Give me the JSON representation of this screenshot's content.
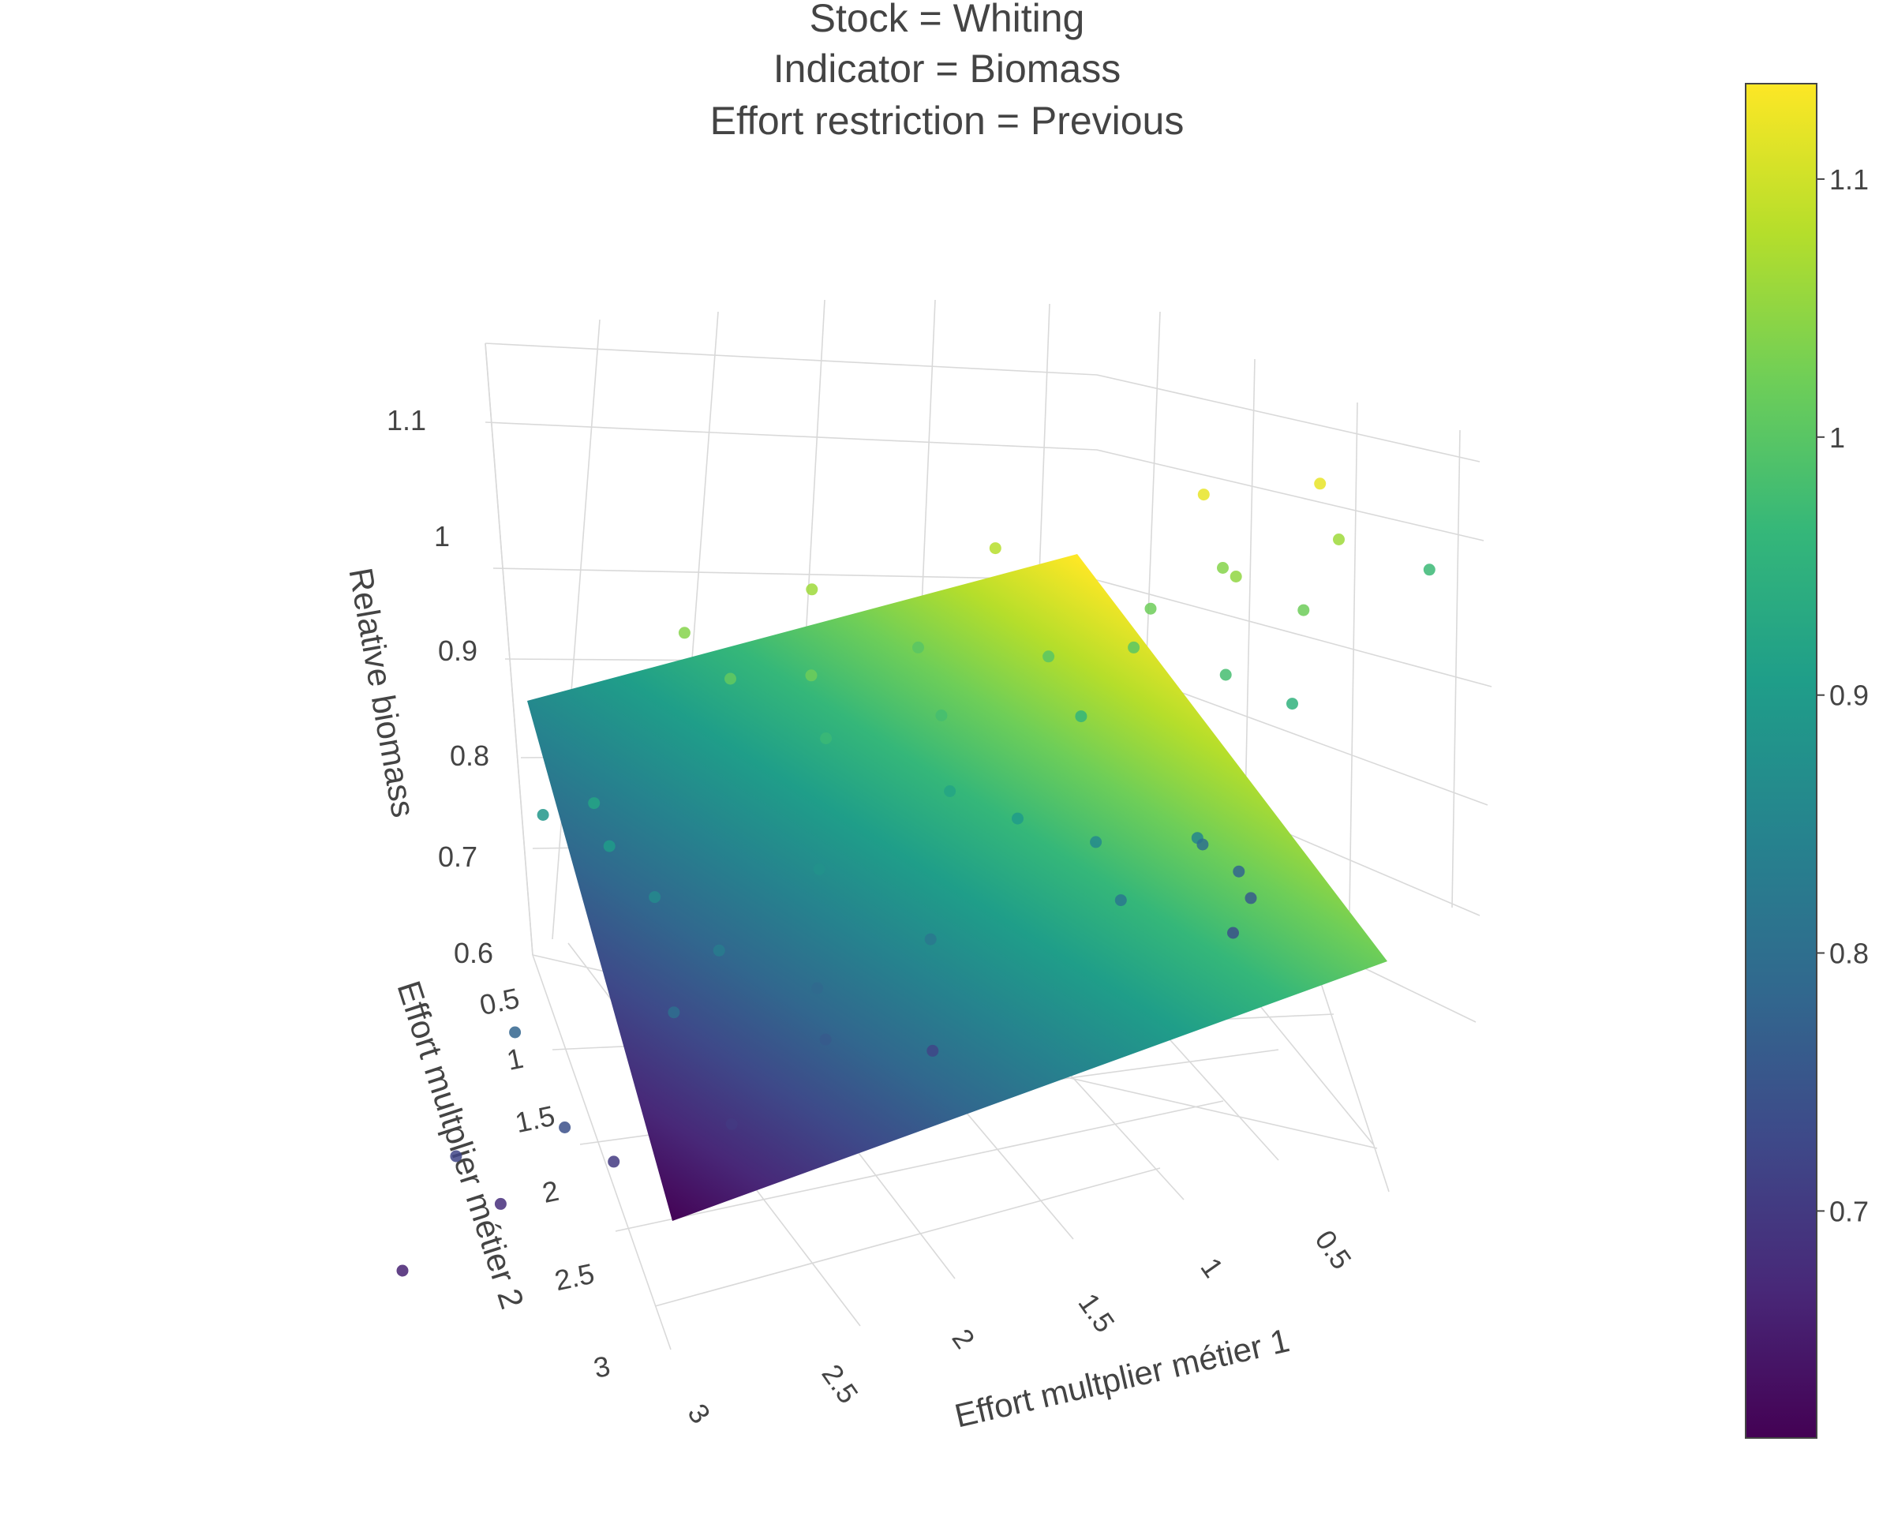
{
  "title_lines": [
    "Stock = Whiting",
    "Indicator = Biomass",
    "Effort restriction = Previous"
  ],
  "chart_data": {
    "type": "surface3d",
    "title": "Stock = Whiting | Indicator = Biomass | Effort restriction = Previous",
    "xlabel": "Effort multplier métier 1",
    "ylabel": "Effort multplier métier 2",
    "zlabel": "Relative biomass",
    "x_ticks": [
      "0.5",
      "1",
      "1.5",
      "2",
      "2.5",
      "3"
    ],
    "y_ticks": [
      "0.5",
      "1",
      "1.5",
      "2",
      "2.5",
      "3"
    ],
    "z_ticks": [
      "0.6",
      "0.7",
      "0.8",
      "0.9",
      "1",
      "1.1"
    ],
    "xlim": [
      0.3,
      3.1
    ],
    "ylim": [
      0.3,
      3.1
    ],
    "zlim": [
      0.6,
      1.15
    ],
    "colorscale": "Viridis",
    "colorbar": {
      "ticks": [
        "0.7",
        "0.8",
        "0.9",
        "1",
        "1.1"
      ],
      "range": [
        0.612,
        1.137
      ]
    },
    "surface": {
      "description": "fitted plane",
      "corners": [
        {
          "x": 0.3,
          "y": 0.3,
          "z": 1.12
        },
        {
          "x": 3.1,
          "y": 0.3,
          "z": 0.86
        },
        {
          "x": 0.3,
          "y": 3.1,
          "z": 0.87
        },
        {
          "x": 3.1,
          "y": 3.1,
          "z": 0.61
        }
      ]
    },
    "series": [
      {
        "type": "scatter3d",
        "points": [
          {
            "x": 0.5,
            "y": 0.5,
            "z": 1.12
          },
          {
            "x": 0.9,
            "y": 0.4,
            "z": 1.12
          },
          {
            "x": 1.6,
            "y": 0.3,
            "z": 1.08
          },
          {
            "x": 0.7,
            "y": 0.9,
            "z": 1.05
          },
          {
            "x": 0.8,
            "y": 0.6,
            "z": 1.04
          },
          {
            "x": 1.0,
            "y": 0.8,
            "z": 1.02
          },
          {
            "x": 1.3,
            "y": 1.0,
            "z": 1.0
          },
          {
            "x": 1.8,
            "y": 0.6,
            "z": 1.0
          },
          {
            "x": 2.1,
            "y": 0.9,
            "z": 1.02
          },
          {
            "x": 2.4,
            "y": 0.7,
            "z": 1.01
          },
          {
            "x": 2.6,
            "y": 0.4,
            "z": 1.04
          },
          {
            "x": 2.2,
            "y": 0.3,
            "z": 1.06
          },
          {
            "x": 0.4,
            "y": 1.3,
            "z": 1.02
          },
          {
            "x": 0.6,
            "y": 1.6,
            "z": 0.98
          },
          {
            "x": 0.3,
            "y": 2.0,
            "z": 0.95
          },
          {
            "x": 1.1,
            "y": 1.5,
            "z": 0.96
          },
          {
            "x": 1.6,
            "y": 1.3,
            "z": 0.98
          },
          {
            "x": 2.0,
            "y": 1.2,
            "z": 0.97
          },
          {
            "x": 2.8,
            "y": 1.0,
            "z": 0.92
          },
          {
            "x": 3.0,
            "y": 0.8,
            "z": 0.89
          },
          {
            "x": 1.2,
            "y": 2.1,
            "z": 0.9
          },
          {
            "x": 1.9,
            "y": 1.9,
            "z": 0.88
          },
          {
            "x": 2.5,
            "y": 1.6,
            "z": 0.86
          },
          {
            "x": 0.5,
            "y": 2.6,
            "z": 0.85
          },
          {
            "x": 0.7,
            "y": 2.9,
            "z": 0.82
          },
          {
            "x": 1.4,
            "y": 2.6,
            "z": 0.82
          },
          {
            "x": 2.3,
            "y": 2.4,
            "z": 0.8
          },
          {
            "x": 2.9,
            "y": 2.0,
            "z": 0.78
          },
          {
            "x": 1.7,
            "y": 2.9,
            "z": 0.76
          },
          {
            "x": 2.6,
            "y": 2.8,
            "z": 0.74
          },
          {
            "x": 3.0,
            "y": 2.6,
            "z": 0.72
          },
          {
            "x": 0.9,
            "y": 2.3,
            "z": 0.86
          },
          {
            "x": 1.5,
            "y": 1.7,
            "z": 0.92
          },
          {
            "x": 2.2,
            "y": 2.1,
            "z": 0.83
          },
          {
            "x": 2.7,
            "y": 1.3,
            "z": 0.9
          },
          {
            "x": 1.0,
            "y": 1.1,
            "z": 1.0
          },
          {
            "x": 0.4,
            "y": 0.7,
            "z": 1.06
          },
          {
            "x": 1.8,
            "y": 2.5,
            "z": 0.79
          },
          {
            "x": 2.4,
            "y": 3.0,
            "z": 0.7
          },
          {
            "x": 3.1,
            "y": 3.1,
            "z": 0.66
          },
          {
            "x": 0.3,
            "y": 3.0,
            "z": 0.74
          },
          {
            "x": 0.3,
            "y": 2.7,
            "z": 0.76
          },
          {
            "x": 0.4,
            "y": 2.4,
            "z": 0.78
          },
          {
            "x": 0.6,
            "y": 2.0,
            "z": 0.8
          },
          {
            "x": 1.3,
            "y": 3.1,
            "z": 0.72
          },
          {
            "x": 2.0,
            "y": 3.0,
            "z": 0.7
          },
          {
            "x": 2.8,
            "y": 2.9,
            "z": 0.68
          },
          {
            "x": 0.2,
            "y": 0.2,
            "z": 0.97
          }
        ]
      }
    ],
    "grid": true,
    "legend": "none"
  }
}
